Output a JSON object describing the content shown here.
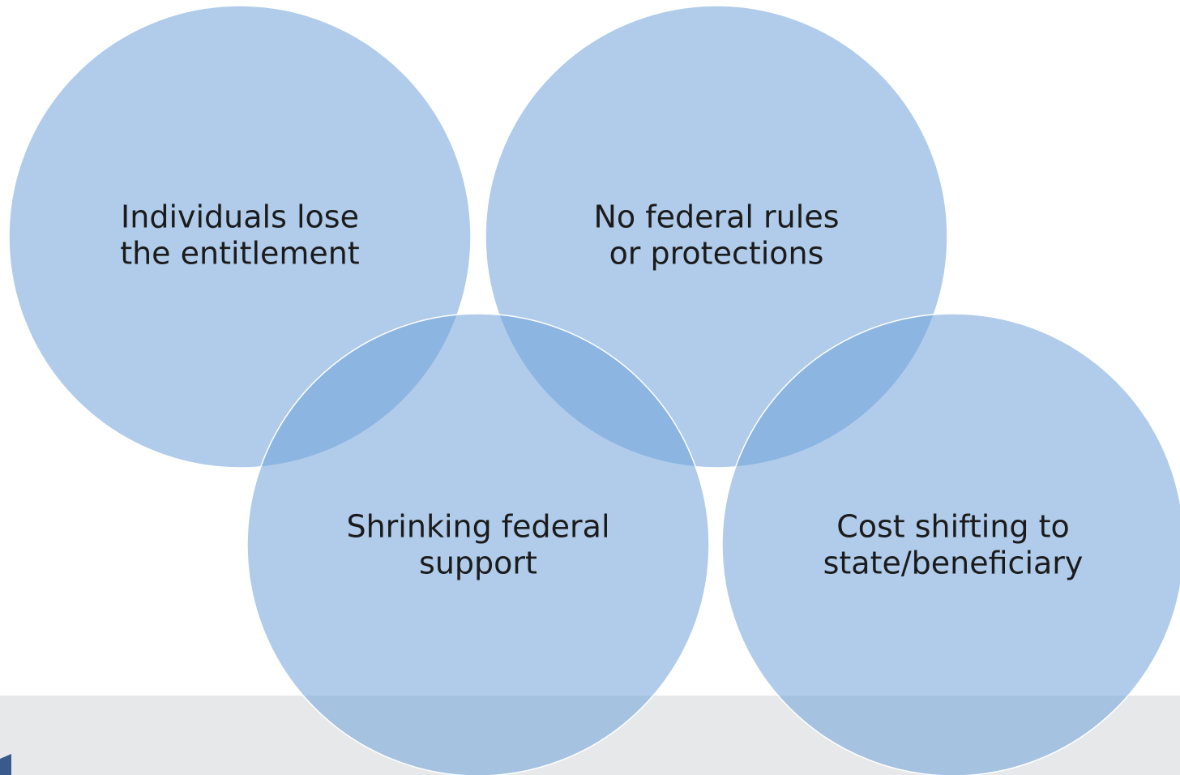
{
  "nodes": [
    {
      "lines": [
        "Individuals lose",
        "the entitlement"
      ]
    },
    {
      "lines": [
        "No federal rules",
        "or protections"
      ]
    },
    {
      "lines": [
        "Shrinking federal",
        "support"
      ]
    },
    {
      "lines": [
        "Cost shifting to",
        "state/beneficiary"
      ]
    }
  ]
}
